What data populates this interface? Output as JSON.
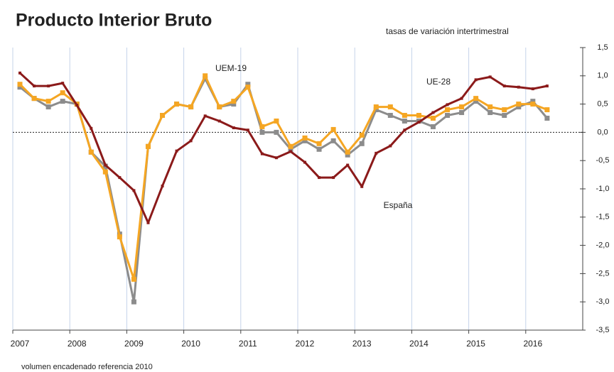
{
  "chart_data": {
    "type": "line",
    "title": "Producto Interior Bruto",
    "subtitle": "tasas de variación intertrimestral",
    "note": "volumen encadenado referencia 2010",
    "x": [
      2007.125,
      2007.375,
      2007.625,
      2007.875,
      2008.125,
      2008.375,
      2008.625,
      2008.875,
      2009.125,
      2009.375,
      2009.625,
      2009.875,
      2010.125,
      2010.375,
      2010.625,
      2010.875,
      2011.125,
      2011.375,
      2011.625,
      2011.875,
      2012.125,
      2012.375,
      2012.625,
      2012.875,
      2013.125,
      2013.375,
      2013.625,
      2013.875,
      2014.125,
      2014.375,
      2014.625,
      2014.875,
      2015.125,
      2015.375,
      2015.625,
      2015.875,
      2016.125,
      2016.375
    ],
    "series": [
      {
        "name": "España",
        "color": "#8b1a1a",
        "values": [
          1.05,
          0.82,
          0.82,
          0.87,
          0.48,
          0.07,
          -0.58,
          -0.8,
          -1.03,
          -1.6,
          -0.95,
          -0.33,
          -0.15,
          0.29,
          0.2,
          0.08,
          0.04,
          -0.38,
          -0.45,
          -0.34,
          -0.53,
          -0.8,
          -0.8,
          -0.58,
          -0.96,
          -0.37,
          -0.24,
          0.04,
          0.18,
          0.35,
          0.49,
          0.6,
          0.93,
          0.98,
          0.82,
          0.8,
          0.77,
          0.82
        ]
      },
      {
        "name": "UEM-19",
        "color": "#8c8c8c",
        "values": [
          0.8,
          0.6,
          0.45,
          0.55,
          0.5,
          -0.35,
          -0.6,
          -1.8,
          -3.0,
          -0.25,
          0.3,
          0.5,
          0.45,
          0.95,
          0.45,
          0.5,
          0.85,
          0.0,
          0.0,
          -0.3,
          -0.15,
          -0.3,
          -0.15,
          -0.4,
          -0.2,
          0.4,
          0.3,
          0.2,
          0.2,
          0.1,
          0.3,
          0.35,
          0.55,
          0.35,
          0.3,
          0.45,
          0.55,
          0.25
        ]
      },
      {
        "name": "UE-28",
        "color": "#f5a623",
        "values": [
          0.85,
          0.6,
          0.55,
          0.7,
          0.5,
          -0.35,
          -0.7,
          -1.85,
          -2.6,
          -0.25,
          0.3,
          0.5,
          0.45,
          1.0,
          0.45,
          0.55,
          0.8,
          0.1,
          0.2,
          -0.25,
          -0.1,
          -0.2,
          0.05,
          -0.35,
          -0.05,
          0.45,
          0.45,
          0.3,
          0.3,
          0.25,
          0.4,
          0.45,
          0.6,
          0.45,
          0.4,
          0.5,
          0.5,
          0.4
        ]
      }
    ],
    "xlim": [
      2007,
      2017
    ],
    "xticks": [
      2007,
      2008,
      2009,
      2010,
      2011,
      2012,
      2013,
      2014,
      2015,
      2016
    ],
    "ylim": [
      -3.5,
      1.5
    ],
    "yticks": [
      {
        "value": -3.5,
        "label": "-3,5"
      },
      {
        "value": -3.0,
        "label": "-3,0"
      },
      {
        "value": -2.5,
        "label": "-2,5"
      },
      {
        "value": -2.0,
        "label": "-2,0"
      },
      {
        "value": -1.5,
        "label": "-1,5"
      },
      {
        "value": -1.0,
        "label": "-1,0"
      },
      {
        "value": -0.5,
        "label": "-0,5"
      },
      {
        "value": 0,
        "label": "0,0"
      },
      {
        "value": 0.5,
        "label": "0,5"
      },
      {
        "value": 1.0,
        "label": "1,0"
      },
      {
        "value": 1.5,
        "label": "1,5"
      }
    ],
    "grid": true
  }
}
